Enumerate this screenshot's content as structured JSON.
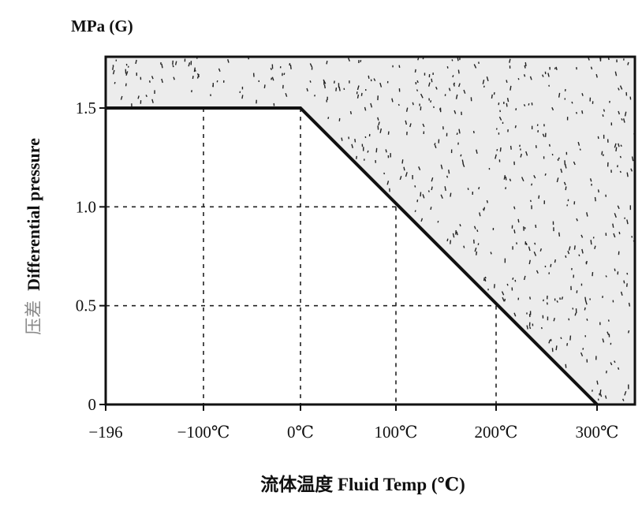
{
  "chart_data": {
    "type": "area",
    "unit_label": "MPa (G)",
    "xlabel": "流体温度 Fluid Temp (℃)",
    "ylabel_cn": "压差",
    "ylabel_en": "Differential pressure",
    "x_ticks": [
      {
        "value": -196,
        "label": "−196"
      },
      {
        "value": -100,
        "label": "−100℃"
      },
      {
        "value": 0,
        "label": "0℃"
      },
      {
        "value": 100,
        "label": "100℃"
      },
      {
        "value": 200,
        "label": "200℃"
      },
      {
        "value": 300,
        "label": "300℃"
      }
    ],
    "y_ticks": [
      {
        "value": 0,
        "label": "0"
      },
      {
        "value": 0.5,
        "label": "0.5"
      },
      {
        "value": 1.0,
        "label": "1.0"
      },
      {
        "value": 1.5,
        "label": "1.5"
      }
    ],
    "xlim": [
      -196,
      340
    ],
    "ylim": [
      0,
      1.75
    ],
    "series": [
      {
        "x": [
          -196,
          0,
          300
        ],
        "y": [
          1.5,
          1.5,
          0
        ]
      }
    ],
    "shaded_region": "above-line",
    "grid": "dashed",
    "colors": {
      "line": "#111111",
      "shade": "#ececec",
      "dots": "#222222"
    }
  }
}
